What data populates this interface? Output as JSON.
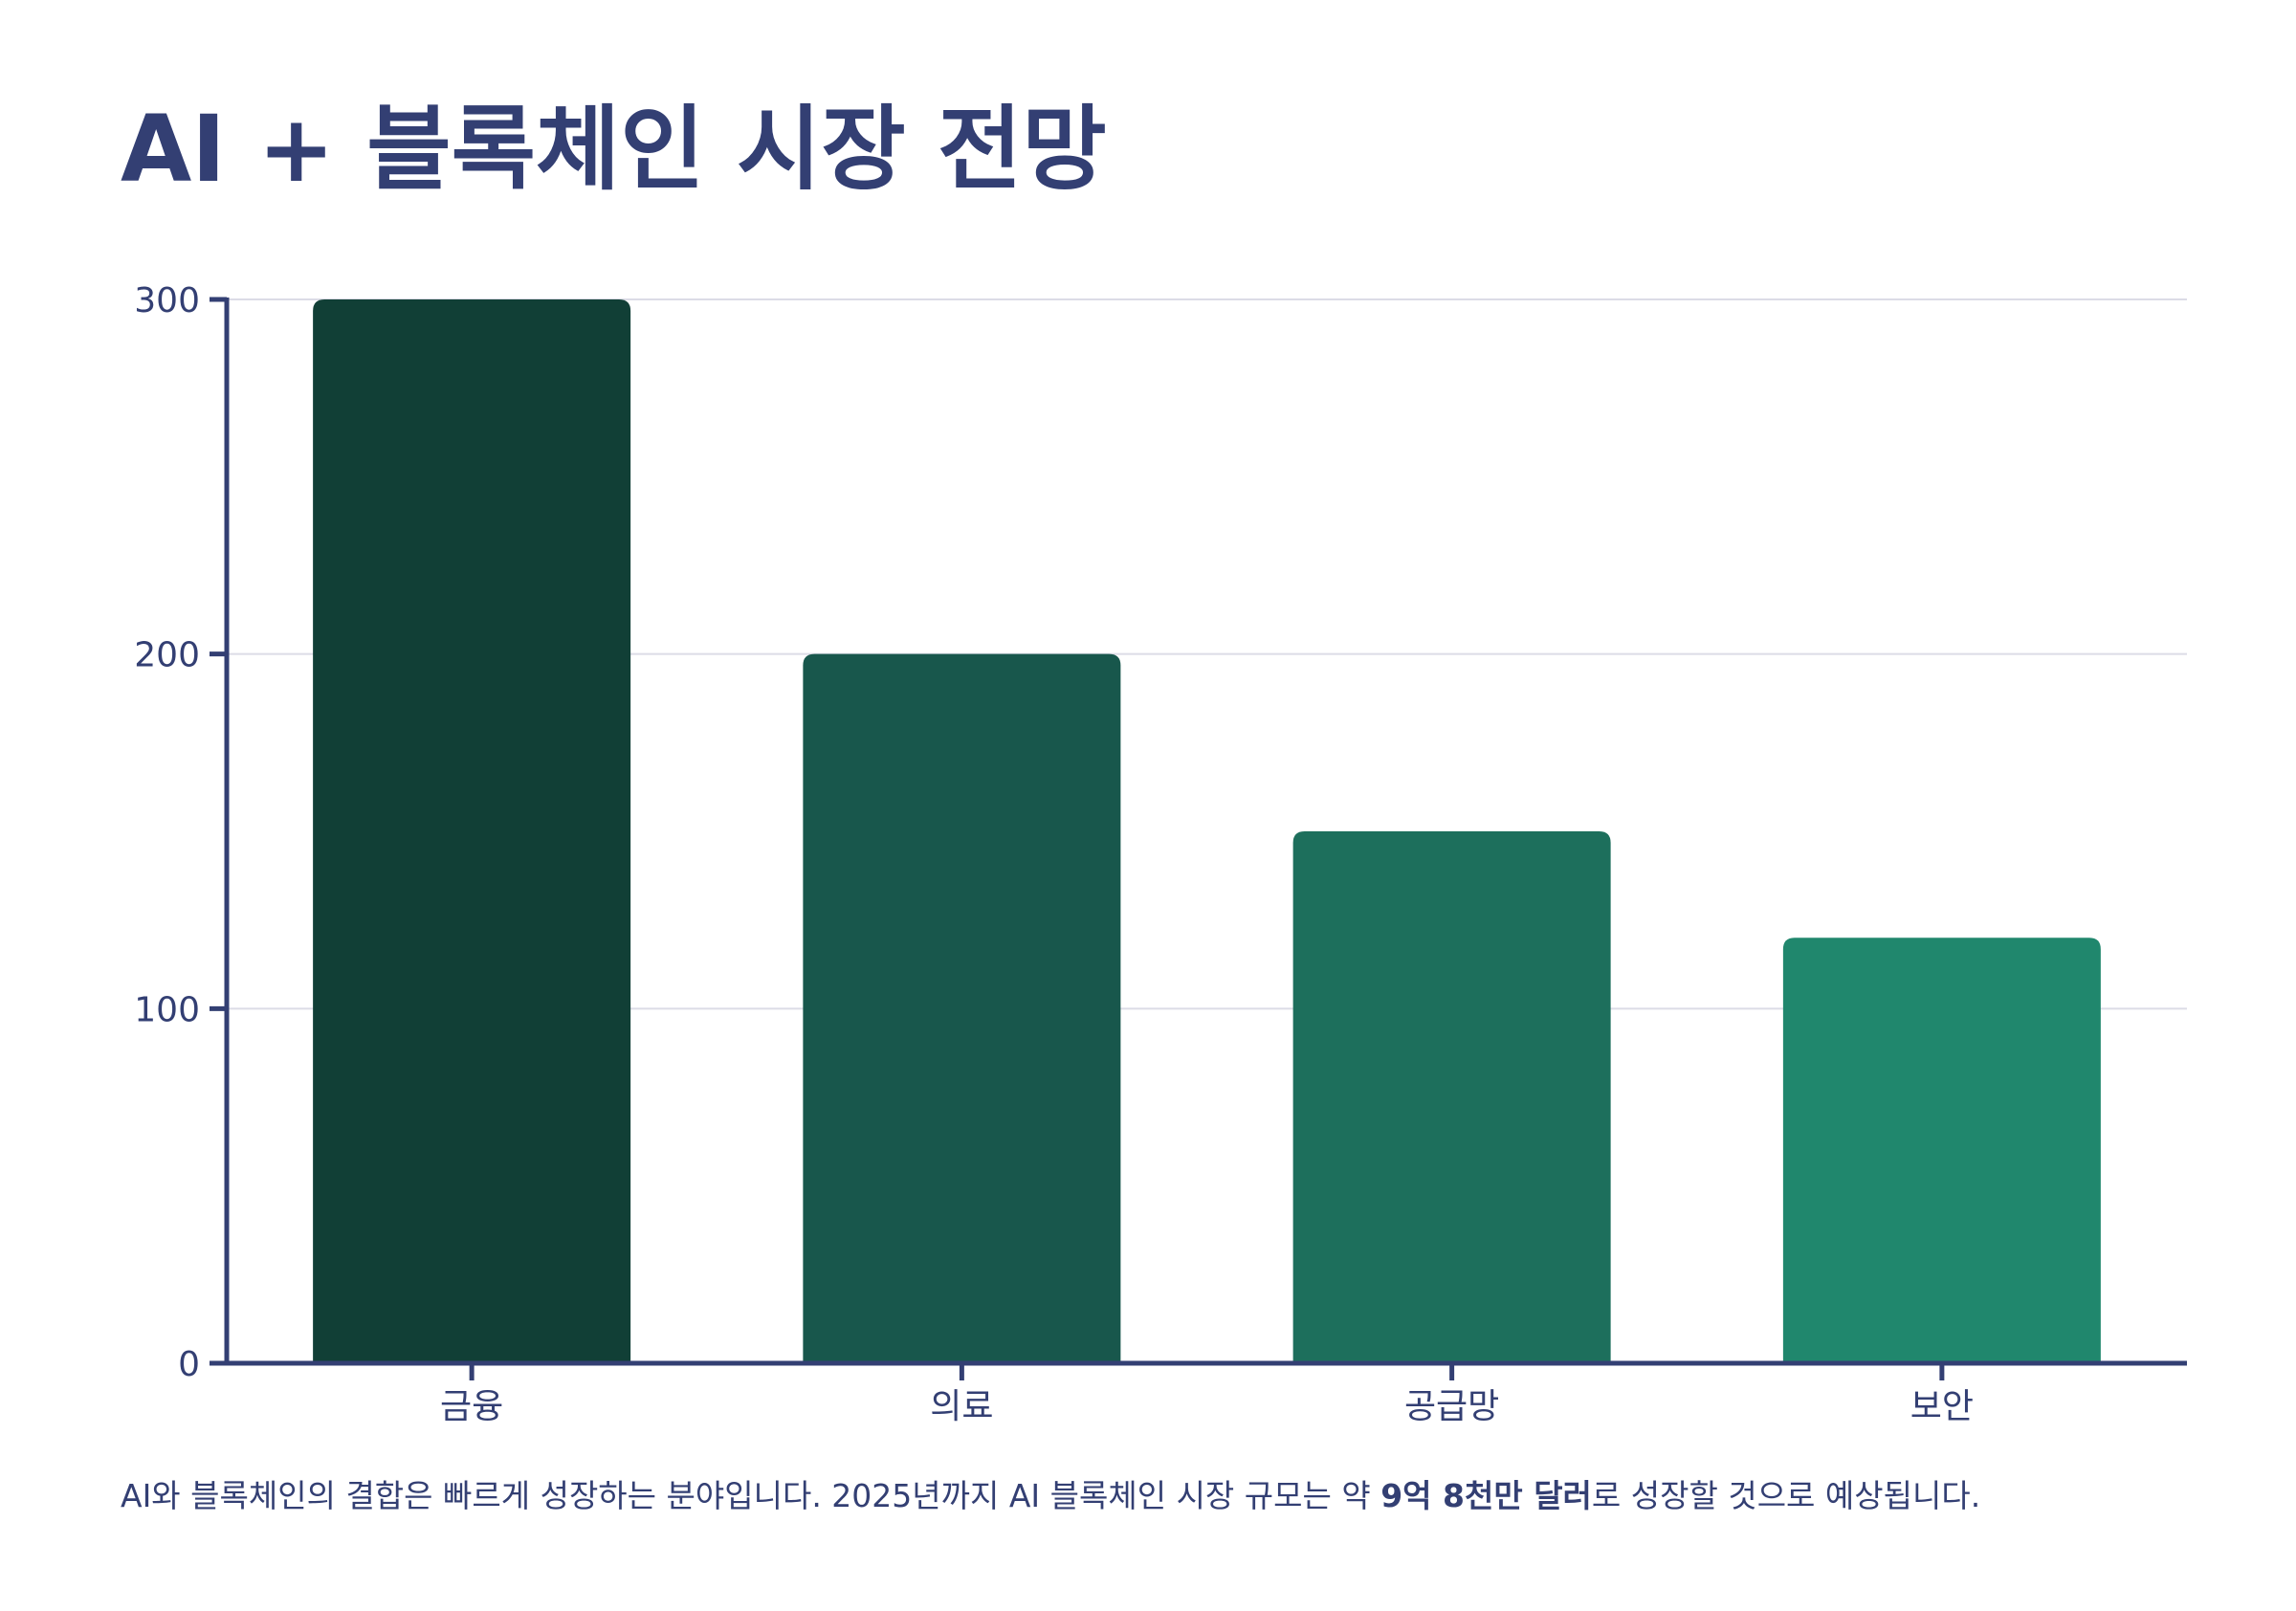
{
  "title": "AI + 블록체인 시장 전망",
  "caption": {
    "before": "AI와 블록체인의 결합은 빠르게 성장하는 분야입니다. 2025년까지 AI 블록체인 시장 규모는 약 ",
    "highlight": "9억 8천만 달러",
    "after": "로 성장할 것으로 예상됩니다."
  },
  "chart_data": {
    "type": "bar",
    "categories": [
      "금융",
      "의료",
      "공급망",
      "보안"
    ],
    "values": [
      300,
      200,
      150,
      120
    ],
    "colors": [
      "#113f36",
      "#18574c",
      "#1d6f5c",
      "#20876d"
    ],
    "xlabel": "",
    "ylabel": "",
    "ylim": [
      0,
      300
    ],
    "yticks": [
      0,
      100,
      200,
      300
    ],
    "grid": true,
    "legend": "none"
  }
}
